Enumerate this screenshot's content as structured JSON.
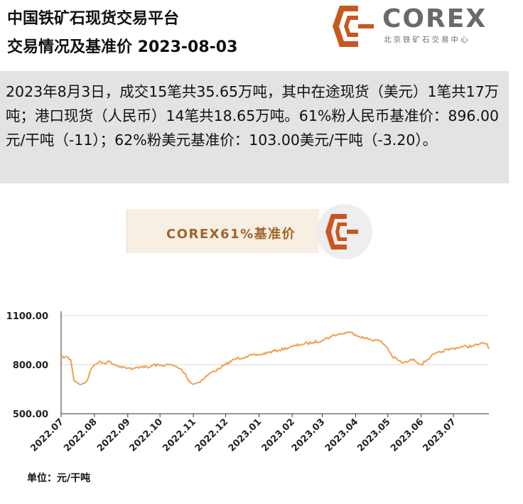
{
  "header": {
    "title_line1": "中国铁矿石现货交易平台",
    "title_line2": "交易情况及基准价  2023-08-03",
    "brand_name": "COREX",
    "brand_subtitle": "北京铁矿石交易中心",
    "logo_icon": "corex-logo-icon",
    "brand_color": "#c8571f"
  },
  "summary": {
    "text": "2023年8月3日，成交15笔共35.65万吨，其中在途现货（美元）1笔共17万吨；港口现货（人民币）14笔共18.65万吨。61%粉人民币基准价：896.00元/干吨（-11）；62%粉美元基准价：103.00美元/干吨（-3.20）。"
  },
  "banner": {
    "label": "COREX61%基准价"
  },
  "chart_data": {
    "type": "line",
    "title": "COREX61%基准价",
    "unit": "单位：元/干吨",
    "series_color": "#f0a050",
    "ylim": [
      500,
      1100
    ],
    "yticks": [
      500,
      800,
      1100
    ],
    "ytick_labels": [
      "500.00",
      "800.00",
      "1100.00"
    ],
    "grid": true,
    "x_ticks": [
      "2022.07",
      "2022.08",
      "2022.09",
      "2022.10",
      "2022.11",
      "2022.12",
      "2023.01",
      "2023.02",
      "2023.03",
      "2023.04",
      "2023.05",
      "2023.06",
      "2023.07"
    ],
    "series": [
      {
        "x": [
          "2022-07-01",
          "2022-07-05",
          "2022-07-10",
          "2022-07-13",
          "2022-07-16",
          "2022-07-20",
          "2022-07-25",
          "2022-07-28",
          "2022-08-01",
          "2022-08-05",
          "2022-08-10",
          "2022-08-15",
          "2022-08-20",
          "2022-08-25",
          "2022-09-01",
          "2022-09-05",
          "2022-09-10",
          "2022-09-15",
          "2022-09-20",
          "2022-09-25",
          "2022-10-01",
          "2022-10-10",
          "2022-10-15",
          "2022-10-20",
          "2022-10-25",
          "2022-10-28",
          "2022-11-01",
          "2022-11-05",
          "2022-11-10",
          "2022-11-15",
          "2022-11-20",
          "2022-11-25",
          "2022-12-01",
          "2022-12-10",
          "2022-12-20",
          "2023-01-01",
          "2023-01-10",
          "2023-01-20",
          "2023-02-01",
          "2023-02-10",
          "2023-02-20",
          "2023-03-01",
          "2023-03-10",
          "2023-03-15",
          "2023-03-20",
          "2023-03-25",
          "2023-04-01",
          "2023-04-10",
          "2023-04-15",
          "2023-04-20",
          "2023-04-25",
          "2023-05-01",
          "2023-05-05",
          "2023-05-10",
          "2023-05-15",
          "2023-05-20",
          "2023-05-25",
          "2023-06-01",
          "2023-06-10",
          "2023-06-20",
          "2023-07-01",
          "2023-07-10",
          "2023-07-20",
          "2023-07-25",
          "2023-08-01",
          "2023-08-03"
        ],
        "values": [
          840,
          850,
          830,
          700,
          690,
          680,
          700,
          760,
          800,
          815,
          810,
          820,
          800,
          790,
          780,
          770,
          785,
          790,
          780,
          800,
          795,
          800,
          790,
          775,
          740,
          700,
          680,
          690,
          710,
          740,
          760,
          775,
          800,
          835,
          850,
          860,
          875,
          890,
          910,
          925,
          935,
          950,
          975,
          985,
          990,
          1000,
          985,
          960,
          955,
          950,
          940,
          900,
          850,
          830,
          810,
          820,
          835,
          800,
          850,
          880,
          900,
          910,
          915,
          925,
          930,
          896
        ]
      }
    ]
  }
}
